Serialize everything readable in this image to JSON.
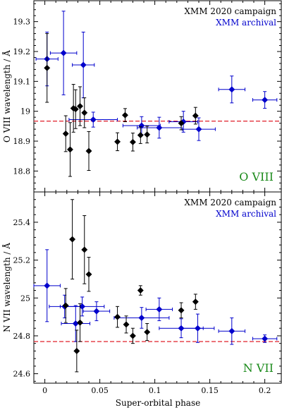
{
  "figure": {
    "xlabel": "Super-orbital phase"
  },
  "colors": {
    "campaign": "#000000",
    "archival": "#0000cc",
    "ref_line": "#e0202a",
    "ion_label": "#1a8a1a"
  },
  "chart_data": [
    {
      "type": "scatter",
      "panel": "top",
      "ylabel": "O VIII wavelength / Å",
      "ion_label": "O VIII",
      "xlim": [
        -0.01,
        0.215
      ],
      "ylim": [
        18.73,
        19.37
      ],
      "xticks": [
        0,
        0.05,
        0.1,
        0.15,
        0.2
      ],
      "xticklabels": [
        "",
        "",
        "",
        "",
        ""
      ],
      "yticks": [
        18.8,
        18.9,
        19,
        19.1,
        19.2,
        19.3
      ],
      "yticklabels": [
        "18.8",
        "18.9",
        "19",
        "19.1",
        "19.2",
        "19.3"
      ],
      "reference_line": 18.967,
      "legend_position": "top-right",
      "series": [
        {
          "name": "XMM 2020 campaign",
          "color": "#000000",
          "points": [
            {
              "x": 0.002,
              "y": 19.145,
              "yerr": 0.115
            },
            {
              "x": 0.019,
              "y": 18.925,
              "yerr": 0.06
            },
            {
              "x": 0.023,
              "y": 18.872,
              "yerr": 0.09
            },
            {
              "x": 0.026,
              "y": 19.01,
              "yerr": 0.08
            },
            {
              "x": 0.028,
              "y": 19.007,
              "yerr": 0.065
            },
            {
              "x": 0.032,
              "y": 19.017,
              "yerr": 0.065
            },
            {
              "x": 0.036,
              "y": 18.995,
              "yerr": 0.05
            },
            {
              "x": 0.04,
              "y": 18.867,
              "yerr": 0.065
            },
            {
              "x": 0.066,
              "y": 18.898,
              "yerr": 0.03
            },
            {
              "x": 0.073,
              "y": 18.987,
              "yerr": 0.022
            },
            {
              "x": 0.08,
              "y": 18.897,
              "yerr": 0.03
            },
            {
              "x": 0.087,
              "y": 18.92,
              "yerr": 0.028
            },
            {
              "x": 0.093,
              "y": 18.922,
              "yerr": 0.028
            },
            {
              "x": 0.124,
              "y": 18.96,
              "yerr": 0.022
            },
            {
              "x": 0.137,
              "y": 18.985,
              "yerr": 0.028
            }
          ]
        },
        {
          "name": "XMM archival",
          "color": "#0000cc",
          "points": [
            {
              "x": 0.002,
              "y": 19.175,
              "yerr": 0.09,
              "xerr": 0.01
            },
            {
              "x": 0.017,
              "y": 19.195,
              "yerr": 0.14,
              "xerr": 0.012
            },
            {
              "x": 0.035,
              "y": 19.155,
              "yerr": 0.11,
              "xerr": 0.01
            },
            {
              "x": 0.044,
              "y": 18.972,
              "yerr": 0.025,
              "xerr": 0.022
            },
            {
              "x": 0.088,
              "y": 18.952,
              "yerr": 0.03,
              "xerr": 0.017
            },
            {
              "x": 0.104,
              "y": 18.945,
              "yerr": 0.035,
              "xerr": 0.02
            },
            {
              "x": 0.126,
              "y": 18.965,
              "yerr": 0.035,
              "xerr": 0.013
            },
            {
              "x": 0.14,
              "y": 18.94,
              "yerr": 0.038,
              "xerr": 0.015
            },
            {
              "x": 0.17,
              "y": 19.073,
              "yerr": 0.045,
              "xerr": 0.012
            },
            {
              "x": 0.2,
              "y": 19.038,
              "yerr": 0.028,
              "xerr": 0.011
            }
          ]
        }
      ]
    },
    {
      "type": "scatter",
      "panel": "bottom",
      "ylabel": "N VII wavelength / Å",
      "ion_label": "N VII",
      "xlabel": "Super-orbital phase",
      "xlim": [
        -0.01,
        0.215
      ],
      "ylim": [
        24.55,
        25.56
      ],
      "xticks": [
        0,
        0.05,
        0.1,
        0.15,
        0.2
      ],
      "xticklabels": [
        "0",
        "0.05",
        "0.1",
        "0.15",
        "0.2"
      ],
      "yticks": [
        24.6,
        24.8,
        25,
        25.2,
        25.4
      ],
      "yticklabels": [
        "24.6",
        "24.8",
        "25",
        "25.2",
        "25.4"
      ],
      "reference_line": 24.77,
      "legend_position": "top-right",
      "series": [
        {
          "name": "XMM 2020 campaign",
          "color": "#000000",
          "points": [
            {
              "x": 0.019,
              "y": 24.96,
              "yerr": 0.09
            },
            {
              "x": 0.025,
              "y": 25.31,
              "yerr": 0.21
            },
            {
              "x": 0.029,
              "y": 24.72,
              "yerr": 0.11
            },
            {
              "x": 0.032,
              "y": 24.87,
              "yerr": 0.1
            },
            {
              "x": 0.036,
              "y": 25.255,
              "yerr": 0.18
            },
            {
              "x": 0.04,
              "y": 25.125,
              "yerr": 0.09
            },
            {
              "x": 0.066,
              "y": 24.9,
              "yerr": 0.055
            },
            {
              "x": 0.074,
              "y": 24.86,
              "yerr": 0.045
            },
            {
              "x": 0.08,
              "y": 24.8,
              "yerr": 0.04
            },
            {
              "x": 0.087,
              "y": 25.04,
              "yerr": 0.025
            },
            {
              "x": 0.093,
              "y": 24.82,
              "yerr": 0.045
            },
            {
              "x": 0.124,
              "y": 24.935,
              "yerr": 0.04
            },
            {
              "x": 0.137,
              "y": 24.98,
              "yerr": 0.04
            }
          ]
        },
        {
          "name": "XMM archival",
          "color": "#0000cc",
          "points": [
            {
              "x": 0.002,
              "y": 25.065,
              "yerr": 0.19,
              "xerr": 0.012
            },
            {
              "x": 0.018,
              "y": 24.955,
              "yerr": 0.06,
              "xerr": 0.014
            },
            {
              "x": 0.028,
              "y": 24.865,
              "yerr": 0.095,
              "xerr": 0.013
            },
            {
              "x": 0.034,
              "y": 24.955,
              "yerr": 0.05,
              "xerr": 0.02
            },
            {
              "x": 0.047,
              "y": 24.93,
              "yerr": 0.05,
              "xerr": 0.012
            },
            {
              "x": 0.088,
              "y": 24.895,
              "yerr": 0.055,
              "xerr": 0.025
            },
            {
              "x": 0.104,
              "y": 24.94,
              "yerr": 0.06,
              "xerr": 0.012
            },
            {
              "x": 0.124,
              "y": 24.84,
              "yerr": 0.05,
              "xerr": 0.02
            },
            {
              "x": 0.139,
              "y": 24.84,
              "yerr": 0.075,
              "xerr": 0.015
            },
            {
              "x": 0.17,
              "y": 24.825,
              "yerr": 0.07,
              "xerr": 0.012
            },
            {
              "x": 0.2,
              "y": 24.785,
              "yerr": 0.02,
              "xerr": 0.011
            }
          ]
        }
      ]
    }
  ]
}
